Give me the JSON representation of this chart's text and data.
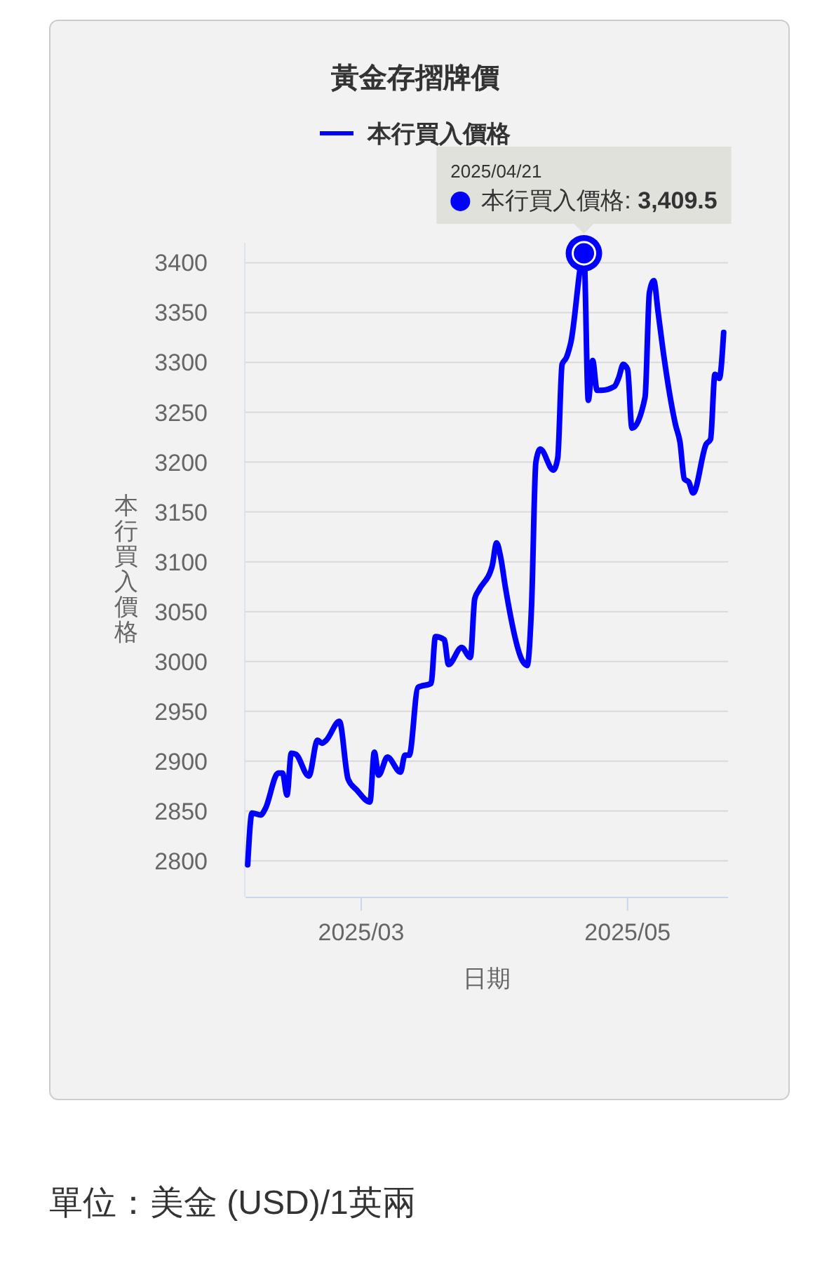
{
  "chart_data": {
    "type": "line",
    "title": "黃金存摺牌價",
    "xlabel": "日期",
    "ylabel": "本行買入價格",
    "x": [
      "2025-02-03",
      "2025-02-04",
      "2025-02-06",
      "2025-02-07",
      "2025-02-10",
      "2025-02-11",
      "2025-02-12",
      "2025-02-13",
      "2025-02-14",
      "2025-02-17",
      "2025-02-19",
      "2025-02-20",
      "2025-02-21",
      "2025-02-24",
      "2025-02-26",
      "2025-02-28",
      "2025-03-03",
      "2025-03-04",
      "2025-03-05",
      "2025-03-07",
      "2025-03-10",
      "2025-03-11",
      "2025-03-12",
      "2025-03-14",
      "2025-03-17",
      "2025-03-18",
      "2025-03-20",
      "2025-03-21",
      "2025-03-24",
      "2025-03-26",
      "2025-03-27",
      "2025-03-28",
      "2025-03-31",
      "2025-04-01",
      "2025-04-02",
      "2025-04-03",
      "2025-04-07",
      "2025-04-08",
      "2025-04-09",
      "2025-04-10",
      "2025-04-11",
      "2025-04-14",
      "2025-04-15",
      "2025-04-16",
      "2025-04-17",
      "2025-04-18",
      "2025-04-21",
      "2025-04-22",
      "2025-04-23",
      "2025-04-24",
      "2025-04-25",
      "2025-04-28",
      "2025-04-29",
      "2025-04-30",
      "2025-05-01",
      "2025-05-02",
      "2025-05-05",
      "2025-05-06",
      "2025-05-07",
      "2025-05-08",
      "2025-05-09",
      "2025-05-12",
      "2025-05-13",
      "2025-05-14",
      "2025-05-15",
      "2025-05-16",
      "2025-05-19",
      "2025-05-20",
      "2025-05-21",
      "2025-05-22",
      "2025-05-23"
    ],
    "series": [
      {
        "name": "本行買入價格",
        "color": "#0000ff",
        "values": [
          2796,
          2848,
          2846,
          2852,
          2888,
          2888,
          2866,
          2908,
          2907,
          2885,
          2921,
          2918,
          2921,
          2940,
          2882,
          2871,
          2859,
          2909,
          2886,
          2904,
          2889,
          2906,
          2906,
          2974,
          2978,
          3025,
          3022,
          2997,
          3014,
          3004,
          3063,
          3072,
          3096,
          3119,
          3103,
          3075,
          3000,
          2996,
          3055,
          3200,
          3213,
          3192,
          3204,
          3298,
          3305,
          3320,
          3409.5,
          3262,
          3302,
          3272,
          3272,
          3276,
          3285,
          3298,
          3293,
          3234,
          3265,
          3370,
          3382,
          3350,
          3316,
          3237,
          3220,
          3183,
          3180,
          3169,
          3218,
          3223,
          3288,
          3284,
          3330
        ]
      }
    ],
    "xlim": [
      "2025-02-02T12:00",
      "2025-05-24"
    ],
    "xticks": [
      {
        "value": "2025-03-01",
        "label": "2025/03"
      },
      {
        "value": "2025-05-01",
        "label": "2025/05"
      }
    ],
    "ylim": [
      2764,
      3420
    ],
    "yticks": [
      2800,
      2850,
      2900,
      2950,
      3000,
      3050,
      3100,
      3150,
      3200,
      3250,
      3300,
      3350,
      3400
    ],
    "grid": "y",
    "legend": "top",
    "annotations": [
      {
        "text": "2025/04/21\n本行買入價格: 3,409.5",
        "x": "2025-04-21",
        "y": 3409.5
      },
      "單位：美金 (USD)/1英兩"
    ]
  }
}
